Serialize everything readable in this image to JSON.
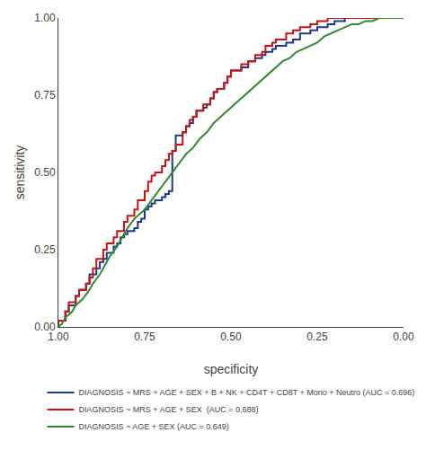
{
  "chart_data": {
    "type": "line",
    "xlabel": "specificity",
    "ylabel": "sensitivity",
    "xlim": [
      1.0,
      0.0
    ],
    "ylim": [
      0.0,
      1.0
    ],
    "xticks": [
      {
        "value": 1.0,
        "label": "1.00"
      },
      {
        "value": 0.75,
        "label": "0.75"
      },
      {
        "value": 0.5,
        "label": "0.50"
      },
      {
        "value": 0.25,
        "label": "0.25"
      },
      {
        "value": 0.0,
        "label": "0.00"
      }
    ],
    "yticks": [
      {
        "value": 0.0,
        "label": "0.00"
      },
      {
        "value": 0.25,
        "label": "0.25"
      },
      {
        "value": 0.5,
        "label": "0.50"
      },
      {
        "value": 0.75,
        "label": "0.75"
      },
      {
        "value": 1.0,
        "label": "1.00"
      }
    ],
    "grid": false,
    "legend": "bottom",
    "series": [
      {
        "name": "DIAGNOSIS ~ MRS + AGE + SEX + B + NK + CD4T + CD8T + Mono + Neutro (AUC = 0.696)",
        "color": "#1a3a8c",
        "line_style": "steps",
        "x": [
          1.0,
          1.0,
          0.98,
          0.97,
          0.95,
          0.94,
          0.92,
          0.91,
          0.89,
          0.88,
          0.87,
          0.86,
          0.84,
          0.83,
          0.82,
          0.81,
          0.8,
          0.78,
          0.77,
          0.76,
          0.75,
          0.74,
          0.73,
          0.72,
          0.7,
          0.69,
          0.68,
          0.67,
          0.66,
          0.66,
          0.64,
          0.63,
          0.62,
          0.61,
          0.6,
          0.58,
          0.57,
          0.56,
          0.55,
          0.54,
          0.52,
          0.51,
          0.5,
          0.47,
          0.45,
          0.43,
          0.41,
          0.4,
          0.38,
          0.37,
          0.34,
          0.32,
          0.3,
          0.27,
          0.25,
          0.22,
          0.2,
          0.17,
          0.15,
          0.13,
          0.1,
          0.08,
          0.05,
          0.03,
          0.0
        ],
        "values": [
          0.0,
          0.02,
          0.05,
          0.07,
          0.1,
          0.12,
          0.14,
          0.17,
          0.19,
          0.21,
          0.22,
          0.24,
          0.26,
          0.27,
          0.29,
          0.3,
          0.31,
          0.32,
          0.34,
          0.35,
          0.38,
          0.39,
          0.4,
          0.41,
          0.42,
          0.43,
          0.44,
          0.57,
          0.6,
          0.62,
          0.63,
          0.65,
          0.66,
          0.68,
          0.7,
          0.71,
          0.72,
          0.74,
          0.76,
          0.77,
          0.79,
          0.81,
          0.83,
          0.84,
          0.86,
          0.87,
          0.88,
          0.89,
          0.9,
          0.91,
          0.92,
          0.93,
          0.95,
          0.96,
          0.97,
          0.98,
          0.99,
          1.0,
          1.0,
          1.0,
          1.0,
          1.0,
          1.0,
          1.0,
          1.0
        ]
      },
      {
        "name": "DIAGNOSIS ~ MRS + AGE + SEX  (AUC = 0.688)",
        "color": "#cc1111",
        "line_style": "steps",
        "x": [
          1.0,
          1.0,
          0.98,
          0.97,
          0.95,
          0.94,
          0.92,
          0.91,
          0.9,
          0.89,
          0.87,
          0.86,
          0.84,
          0.83,
          0.81,
          0.8,
          0.78,
          0.77,
          0.75,
          0.74,
          0.73,
          0.72,
          0.7,
          0.69,
          0.68,
          0.67,
          0.66,
          0.64,
          0.63,
          0.62,
          0.61,
          0.6,
          0.58,
          0.56,
          0.55,
          0.54,
          0.52,
          0.51,
          0.5,
          0.47,
          0.45,
          0.43,
          0.41,
          0.4,
          0.38,
          0.37,
          0.34,
          0.32,
          0.3,
          0.27,
          0.25,
          0.22,
          0.2,
          0.17,
          0.15,
          0.13,
          0.1,
          0.08,
          0.05,
          0.03,
          0.0
        ],
        "values": [
          0.0,
          0.02,
          0.05,
          0.08,
          0.1,
          0.12,
          0.14,
          0.16,
          0.19,
          0.22,
          0.25,
          0.27,
          0.29,
          0.31,
          0.34,
          0.36,
          0.38,
          0.41,
          0.44,
          0.47,
          0.49,
          0.5,
          0.52,
          0.54,
          0.56,
          0.57,
          0.59,
          0.63,
          0.65,
          0.67,
          0.68,
          0.7,
          0.72,
          0.74,
          0.76,
          0.77,
          0.79,
          0.81,
          0.83,
          0.85,
          0.86,
          0.88,
          0.89,
          0.91,
          0.92,
          0.93,
          0.95,
          0.96,
          0.97,
          0.98,
          0.99,
          1.0,
          1.0,
          1.0,
          1.0,
          1.0,
          1.0,
          1.0,
          1.0,
          1.0,
          1.0
        ]
      },
      {
        "name": "DIAGNOSIS ~ AGE + SEX (AUC = 0.649)",
        "color": "#2e8b2e",
        "line_style": "solid",
        "x": [
          1.0,
          0.99,
          0.98,
          0.96,
          0.95,
          0.93,
          0.91,
          0.9,
          0.88,
          0.87,
          0.86,
          0.85,
          0.83,
          0.82,
          0.81,
          0.8,
          0.78,
          0.75,
          0.73,
          0.71,
          0.69,
          0.67,
          0.65,
          0.63,
          0.61,
          0.59,
          0.57,
          0.55,
          0.53,
          0.51,
          0.49,
          0.47,
          0.45,
          0.43,
          0.41,
          0.39,
          0.37,
          0.35,
          0.33,
          0.31,
          0.29,
          0.27,
          0.25,
          0.23,
          0.21,
          0.19,
          0.17,
          0.15,
          0.13,
          0.11,
          0.09,
          0.07,
          0.05,
          0.03,
          0.01,
          0.0
        ],
        "values": [
          0.0,
          0.01,
          0.03,
          0.05,
          0.07,
          0.09,
          0.12,
          0.14,
          0.17,
          0.19,
          0.21,
          0.23,
          0.26,
          0.28,
          0.3,
          0.32,
          0.35,
          0.38,
          0.41,
          0.44,
          0.47,
          0.5,
          0.53,
          0.56,
          0.58,
          0.61,
          0.63,
          0.66,
          0.68,
          0.7,
          0.72,
          0.74,
          0.76,
          0.78,
          0.8,
          0.82,
          0.84,
          0.86,
          0.87,
          0.89,
          0.9,
          0.91,
          0.92,
          0.94,
          0.95,
          0.96,
          0.97,
          0.98,
          0.98,
          0.99,
          0.99,
          1.0,
          1.0,
          1.0,
          1.0,
          1.0
        ]
      }
    ]
  }
}
